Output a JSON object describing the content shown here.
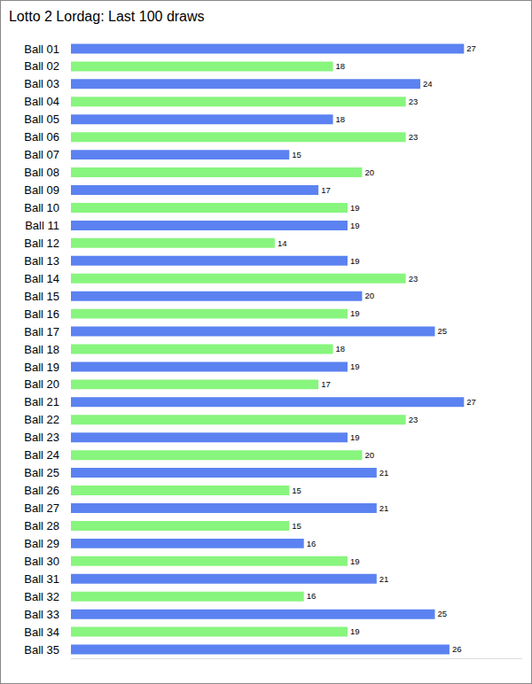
{
  "chart_data": {
    "type": "bar",
    "title": "Lotto 2 Lordag: Last 100 draws",
    "orientation": "horizontal",
    "categories": [
      "Ball 01",
      "Ball 02",
      "Ball 03",
      "Ball 04",
      "Ball 05",
      "Ball 06",
      "Ball 07",
      "Ball 08",
      "Ball 09",
      "Ball 10",
      "Ball 11",
      "Ball 12",
      "Ball 13",
      "Ball 14",
      "Ball 15",
      "Ball 16",
      "Ball 17",
      "Ball 18",
      "Ball 19",
      "Ball 20",
      "Ball 21",
      "Ball 22",
      "Ball 23",
      "Ball 24",
      "Ball 25",
      "Ball 26",
      "Ball 27",
      "Ball 28",
      "Ball 29",
      "Ball 30",
      "Ball 31",
      "Ball 32",
      "Ball 33",
      "Ball 34",
      "Ball 35"
    ],
    "values": [
      27,
      18,
      24,
      23,
      18,
      23,
      15,
      20,
      17,
      19,
      19,
      14,
      19,
      23,
      20,
      19,
      25,
      18,
      19,
      17,
      27,
      23,
      19,
      20,
      21,
      15,
      21,
      15,
      16,
      19,
      21,
      16,
      25,
      19,
      26
    ],
    "colors": [
      "#5b82f0",
      "#88f57e",
      "#5b82f0",
      "#88f57e",
      "#5b82f0",
      "#88f57e",
      "#5b82f0",
      "#88f57e",
      "#5b82f0",
      "#88f57e",
      "#5b82f0",
      "#88f57e",
      "#5b82f0",
      "#88f57e",
      "#5b82f0",
      "#88f57e",
      "#5b82f0",
      "#88f57e",
      "#5b82f0",
      "#88f57e",
      "#5b82f0",
      "#88f57e",
      "#5b82f0",
      "#88f57e",
      "#5b82f0",
      "#88f57e",
      "#5b82f0",
      "#88f57e",
      "#5b82f0",
      "#88f57e",
      "#5b82f0",
      "#88f57e",
      "#5b82f0",
      "#88f57e",
      "#5b82f0"
    ],
    "xlim": [
      0,
      31
    ],
    "xticks": [],
    "grid": false,
    "data_labels": true,
    "tick_labels": "y"
  }
}
